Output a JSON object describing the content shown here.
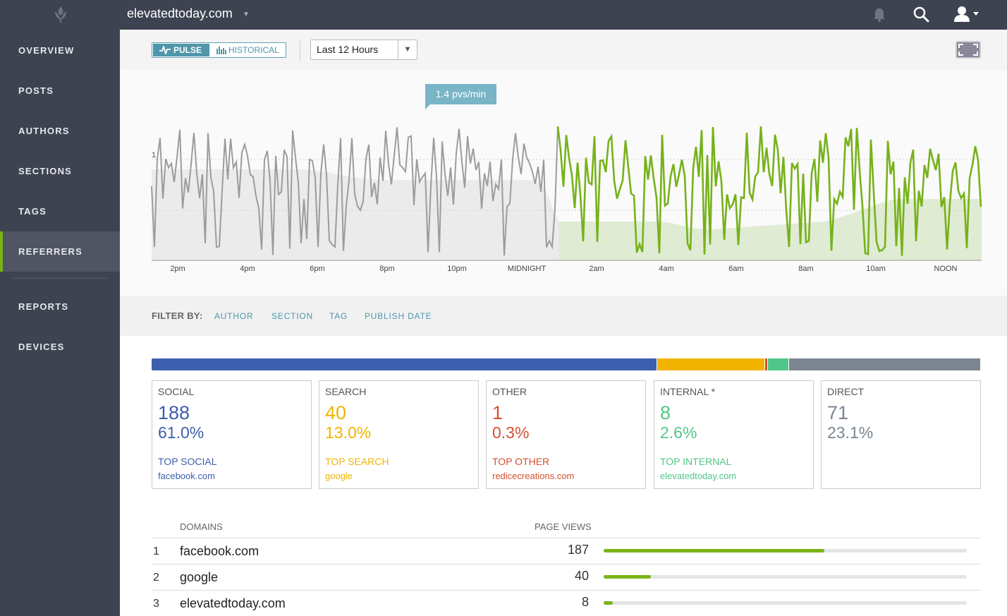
{
  "header": {
    "site_title": "elevatedtoday.com",
    "icons": [
      "logo-icon",
      "bell-icon",
      "search-icon",
      "user-icon",
      "chevron-down-icon"
    ]
  },
  "sidebar": {
    "items": [
      {
        "label": "OVERVIEW",
        "active": false
      },
      {
        "label": "POSTS",
        "active": false
      },
      {
        "label": "AUTHORS",
        "active": false
      },
      {
        "label": "SECTIONS",
        "active": false
      },
      {
        "label": "TAGS",
        "active": false
      },
      {
        "label": "REFERRERS",
        "active": true
      },
      {
        "label": "REPORTS",
        "active": false
      },
      {
        "label": "DEVICES",
        "active": false
      }
    ]
  },
  "toolbar": {
    "pulse_label": "PULSE",
    "historical_label": "HISTORICAL",
    "range_selected": "Last 12 Hours"
  },
  "chart_data": {
    "type": "line",
    "tooltip": "1.4 pvs/min",
    "y_tick_label": "1",
    "x_tick_labels": [
      "2pm",
      "4pm",
      "6pm",
      "8pm",
      "10pm",
      "MIDNIGHT",
      "2am",
      "4am",
      "6am",
      "8am",
      "10am",
      "NOON"
    ],
    "colors": {
      "past": "#9c9c9c",
      "current": "#76b21a",
      "past_fill": "#ebebeb",
      "current_fill": "#e0ebd4"
    }
  },
  "filter": {
    "label": "FILTER BY:",
    "links": [
      "AUTHOR",
      "SECTION",
      "TAG",
      "PUBLISH DATE"
    ]
  },
  "breakdown": [
    {
      "title": "SOCIAL",
      "count": "188",
      "pct": "61.0%",
      "top_label": "TOP SOCIAL",
      "top_value": "facebook.com",
      "color": "#3d5fad",
      "share": 61.0
    },
    {
      "title": "SEARCH",
      "count": "40",
      "pct": "13.0%",
      "top_label": "TOP SEARCH",
      "top_value": "google",
      "color": "#f0b400",
      "share": 13.0
    },
    {
      "title": "OTHER",
      "count": "1",
      "pct": "0.3%",
      "top_label": "TOP OTHER",
      "top_value": "redicecreations.com",
      "color": "#d4502f",
      "share": 0.3
    },
    {
      "title": "INTERNAL *",
      "count": "8",
      "pct": "2.6%",
      "top_label": "TOP INTERNAL",
      "top_value": "elevatedtoday.com",
      "color": "#50c788",
      "share": 2.6
    },
    {
      "title": "DIRECT",
      "count": "71",
      "pct": "23.1%",
      "top_label": "",
      "top_value": "",
      "color": "#7b8591",
      "share": 23.1
    }
  ],
  "table": {
    "col_domains": "DOMAINS",
    "col_views": "PAGE VIEWS",
    "rows": [
      {
        "rank": "1",
        "domain": "facebook.com",
        "views": "187",
        "fraction": 0.608
      },
      {
        "rank": "2",
        "domain": "google",
        "views": "40",
        "fraction": 0.13
      },
      {
        "rank": "3",
        "domain": "elevatedtoday.com",
        "views": "8",
        "fraction": 0.026
      }
    ]
  }
}
